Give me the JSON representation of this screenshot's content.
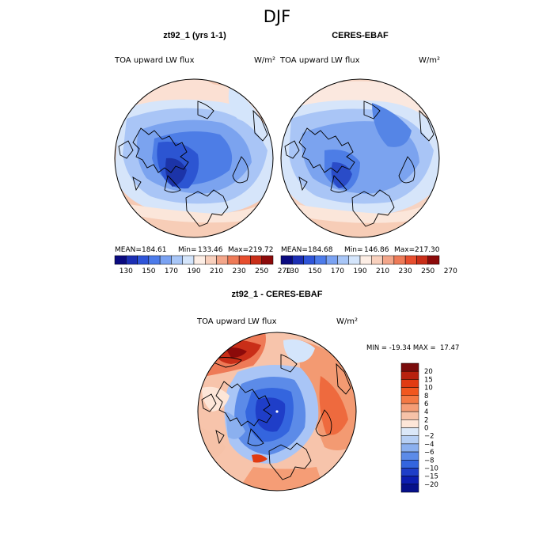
{
  "figure": {
    "title": "DJF",
    "panels": [
      {
        "title": "zt92_1 (yrs 1-1)",
        "variable": "TOA upward LW flux",
        "units": "W/m²",
        "stats": {
          "mean_label": "MEAN=",
          "mean": "184.61",
          "min_label": "Min=",
          "min": "133.46",
          "max_label": "Max=",
          "max": "219.72"
        }
      },
      {
        "title": "CERES-EBAF",
        "variable": "TOA upward LW flux",
        "units": "W/m²",
        "stats": {
          "mean_label": "MEAN=",
          "mean": "184.68",
          "min_label": "Min=",
          "min": "146.86",
          "max_label": "Max=",
          "max": "217.30"
        }
      },
      {
        "title": "zt92_1 - CERES-EBAF",
        "variable": "TOA upward LW flux",
        "units": "W/m²",
        "minmax_text": "MIN = -19.34 MAX =  17.47"
      }
    ],
    "top_colorbar": {
      "tick_labels": [
        "130",
        "150",
        "170",
        "190",
        "210",
        "230",
        "250",
        "270"
      ],
      "colors": [
        "#0a0a80",
        "#1c2fb4",
        "#2f55d9",
        "#4c7bea",
        "#7aa2f2",
        "#a8c6f7",
        "#d4e5fb",
        "#fdeee5",
        "#f8d0bd",
        "#f3a68a",
        "#ee7a57",
        "#e74e2e",
        "#c92e18",
        "#8c0a0a"
      ]
    },
    "diff_colorbar": {
      "tick_labels": [
        "20",
        "15",
        "10",
        "8",
        "6",
        "4",
        "2",
        "0",
        "−2",
        "−4",
        "−6",
        "−8",
        "−10",
        "−15",
        "−20"
      ],
      "colors": [
        "#7a0c0c",
        "#b8220f",
        "#e13b12",
        "#f1571f",
        "#f47944",
        "#f59d76",
        "#f6c2a8",
        "#fde6d8",
        "#dbe8f8",
        "#b6cff4",
        "#8bb0ef",
        "#5c8be8",
        "#3465de",
        "#1f3ec8",
        "#0d1eb0",
        "#06108a"
      ]
    }
  }
}
